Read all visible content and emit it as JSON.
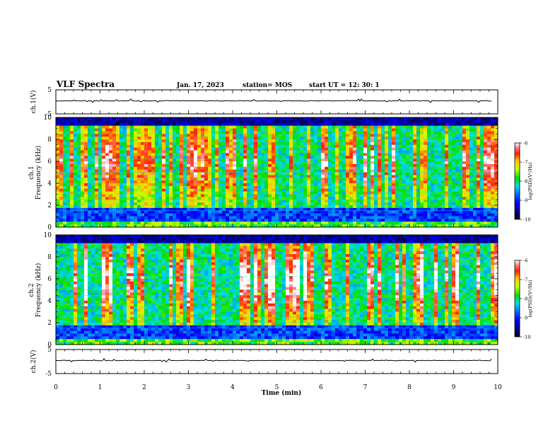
{
  "chart_data": [
    {
      "type": "line",
      "ylabel": "ch.1(V)",
      "ylim": [
        -5,
        5
      ],
      "yticks": [
        "5",
        "-5"
      ],
      "series_note": "near-constant waveform around 0 V"
    },
    {
      "type": "heatmap",
      "ylabel_line1": "ch.1",
      "ylabel_line2": "Frequency (kHz)",
      "ylim": [
        0,
        10
      ],
      "yticks": [
        "0",
        "2",
        "4",
        "6",
        "8",
        "10"
      ],
      "xlim": [
        0,
        10
      ],
      "colorbar": {
        "range": [
          -10,
          -6
        ],
        "ticks": [
          "-6",
          "-7",
          "-8",
          "-9",
          "-10"
        ],
        "label": "log(PSD)(V²/Hz)"
      }
    },
    {
      "type": "heatmap",
      "ylabel_line1": "ch.2",
      "ylabel_line2": "Frequency (kHz)",
      "ylim": [
        0,
        10
      ],
      "yticks": [
        "0",
        "2",
        "4",
        "6",
        "8",
        "10"
      ],
      "xlim": [
        0,
        10
      ],
      "colorbar": {
        "range": [
          -10,
          -6
        ],
        "ticks": [
          "-6",
          "-7",
          "-8",
          "-9",
          "-10"
        ],
        "label": "log(PSD)(V²/Hz)"
      }
    },
    {
      "type": "line",
      "ylabel": "ch.2(V)",
      "ylim": [
        -5,
        5
      ],
      "yticks": [
        "5",
        "-5"
      ],
      "series_note": "near-constant waveform around 0 V"
    }
  ],
  "header": {
    "title": "VLF Spectra",
    "date": "Jan. 17, 2023",
    "station": "station= MOS",
    "start": "start UT =  12: 30: 1"
  },
  "xaxis": {
    "label": "Time (min)",
    "ticks": [
      "0",
      "1",
      "2",
      "3",
      "4",
      "5",
      "6",
      "7",
      "8",
      "9",
      "10"
    ],
    "range": [
      0,
      10
    ]
  }
}
